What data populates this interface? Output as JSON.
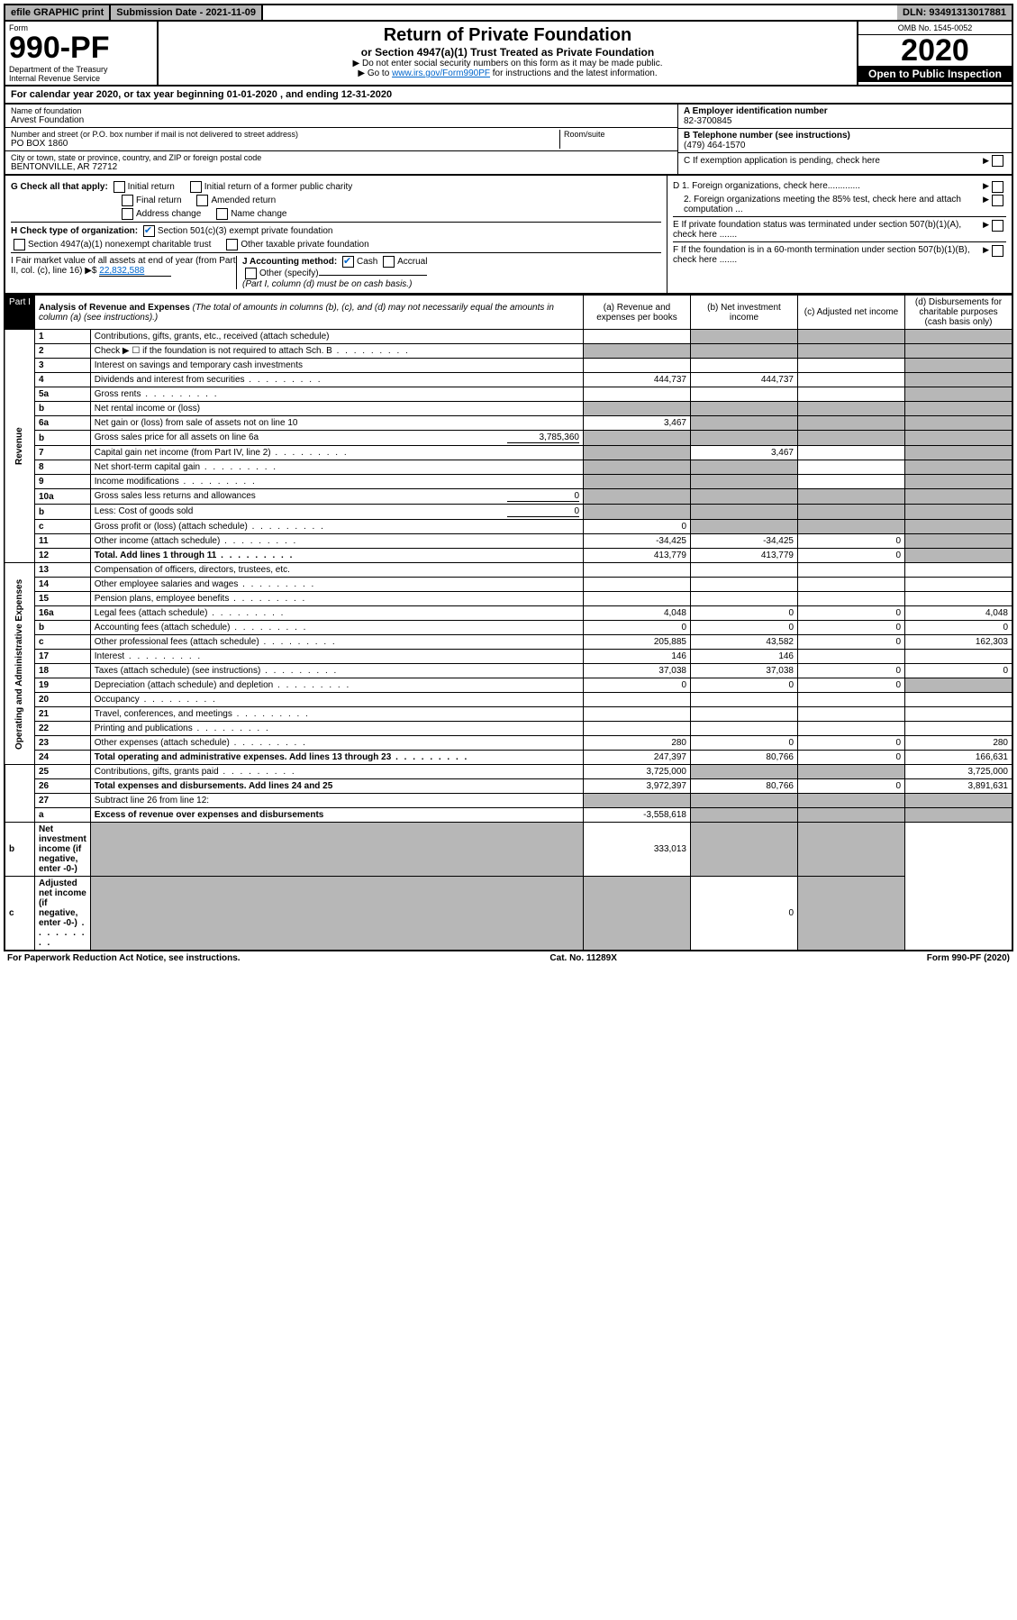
{
  "top": {
    "efile": "efile GRAPHIC print",
    "sub": "Submission Date - 2021-11-09",
    "dln": "DLN: 93491313017881"
  },
  "header": {
    "form_label": "Form",
    "form_no": "990-PF",
    "dept": "Department of the Treasury\nInternal Revenue Service",
    "title": "Return of Private Foundation",
    "subtitle": "or Section 4947(a)(1) Trust Treated as Private Foundation",
    "instr1": "▶ Do not enter social security numbers on this form as it may be made public.",
    "instr2_pre": "▶ Go to ",
    "instr2_link": "www.irs.gov/Form990PF",
    "instr2_post": " for instructions and the latest information.",
    "omb": "OMB No. 1545-0052",
    "year": "2020",
    "open": "Open to Public Inspection"
  },
  "cal": "For calendar year 2020, or tax year beginning 01-01-2020           , and ending 12-31-2020",
  "info": {
    "name_label": "Name of foundation",
    "name": "Arvest Foundation",
    "addr_label": "Number and street (or P.O. box number if mail is not delivered to street address)",
    "addr": "PO BOX 1860",
    "room_label": "Room/suite",
    "city_label": "City or town, state or province, country, and ZIP or foreign postal code",
    "city": "BENTONVILLE, AR  72712",
    "ein_label": "A Employer identification number",
    "ein": "82-3700845",
    "tel_label": "B Telephone number (see instructions)",
    "tel": "(479) 464-1570",
    "c": "C If exemption application is pending, check here",
    "d1": "D 1. Foreign organizations, check here.............",
    "d2": "2. Foreign organizations meeting the 85% test, check here and attach computation ...",
    "e": "E If private foundation status was terminated under section 507(b)(1)(A), check here .......",
    "f": "F If the foundation is in a 60-month termination under section 507(b)(1)(B), check here .......",
    "g": "G Check all that apply:",
    "g_opts": [
      "Initial return",
      "Initial return of a former public charity",
      "Final return",
      "Amended return",
      "Address change",
      "Name change"
    ],
    "h": "H Check type of organization:",
    "h1": "Section 501(c)(3) exempt private foundation",
    "h2": "Section 4947(a)(1) nonexempt charitable trust",
    "h3": "Other taxable private foundation",
    "i": "I Fair market value of all assets at end of year (from Part II, col. (c), line 16) ▶$",
    "i_val": "22,832,588",
    "j": "J Accounting method:",
    "j_cash": "Cash",
    "j_acc": "Accrual",
    "j_other": "Other (specify)",
    "j_note": "(Part I, column (d) must be on cash basis.)"
  },
  "part1": {
    "label": "Part I",
    "title": "Analysis of Revenue and Expenses",
    "note": "(The total of amounts in columns (b), (c), and (d) may not necessarily equal the amounts in column (a) (see instructions).)",
    "cols": {
      "a": "(a) Revenue and expenses per books",
      "b": "(b) Net investment income",
      "c": "(c) Adjusted net income",
      "d": "(d) Disbursements for charitable purposes (cash basis only)"
    }
  },
  "sections": {
    "rev": "Revenue",
    "exp": "Operating and Administrative Expenses"
  },
  "rows": [
    {
      "n": "1",
      "d": "Contributions, gifts, grants, etc., received (attach schedule)",
      "a": "",
      "b": "",
      "c": "",
      "dd": ""
    },
    {
      "n": "2",
      "d": "Check ▶ ☐ if the foundation is not required to attach Sch. B",
      "a": "",
      "b": "",
      "c": "",
      "dd": "",
      "dots": true
    },
    {
      "n": "3",
      "d": "Interest on savings and temporary cash investments",
      "a": "",
      "b": "",
      "c": "",
      "dd": ""
    },
    {
      "n": "4",
      "d": "Dividends and interest from securities",
      "a": "444,737",
      "b": "444,737",
      "c": "",
      "dd": "",
      "dots": true
    },
    {
      "n": "5a",
      "d": "Gross rents",
      "a": "",
      "b": "",
      "c": "",
      "dd": "",
      "dots": true
    },
    {
      "n": "b",
      "d": "Net rental income or (loss)",
      "a": "",
      "b": "",
      "c": "",
      "dd": "",
      "ul": true
    },
    {
      "n": "6a",
      "d": "Net gain or (loss) from sale of assets not on line 10",
      "a": "3,467",
      "b": "",
      "c": "",
      "dd": ""
    },
    {
      "n": "b",
      "d": "Gross sales price for all assets on line 6a",
      "a": "",
      "b": "",
      "c": "",
      "dd": "",
      "inline": "3,785,360"
    },
    {
      "n": "7",
      "d": "Capital gain net income (from Part IV, line 2)",
      "a": "",
      "b": "3,467",
      "c": "",
      "dd": "",
      "dots": true
    },
    {
      "n": "8",
      "d": "Net short-term capital gain",
      "a": "",
      "b": "",
      "c": "",
      "dd": "",
      "dots": true
    },
    {
      "n": "9",
      "d": "Income modifications",
      "a": "",
      "b": "",
      "c": "",
      "dd": "",
      "dots": true
    },
    {
      "n": "10a",
      "d": "Gross sales less returns and allowances",
      "a": "",
      "b": "",
      "c": "",
      "dd": "",
      "inline": "0"
    },
    {
      "n": "b",
      "d": "Less: Cost of goods sold",
      "a": "",
      "b": "",
      "c": "",
      "dd": "",
      "inline": "0"
    },
    {
      "n": "c",
      "d": "Gross profit or (loss) (attach schedule)",
      "a": "0",
      "b": "",
      "c": "",
      "dd": "",
      "dots": true
    },
    {
      "n": "11",
      "d": "Other income (attach schedule)",
      "a": "-34,425",
      "b": "-34,425",
      "c": "0",
      "dd": "",
      "dots": true
    },
    {
      "n": "12",
      "d": "Total. Add lines 1 through 11",
      "a": "413,779",
      "b": "413,779",
      "c": "0",
      "dd": "",
      "bold": true,
      "dots": true
    },
    {
      "n": "13",
      "d": "Compensation of officers, directors, trustees, etc.",
      "a": "",
      "b": "",
      "c": "",
      "dd": ""
    },
    {
      "n": "14",
      "d": "Other employee salaries and wages",
      "a": "",
      "b": "",
      "c": "",
      "dd": "",
      "dots": true
    },
    {
      "n": "15",
      "d": "Pension plans, employee benefits",
      "a": "",
      "b": "",
      "c": "",
      "dd": "",
      "dots": true
    },
    {
      "n": "16a",
      "d": "Legal fees (attach schedule)",
      "a": "4,048",
      "b": "0",
      "c": "0",
      "dd": "4,048",
      "dots": true
    },
    {
      "n": "b",
      "d": "Accounting fees (attach schedule)",
      "a": "0",
      "b": "0",
      "c": "0",
      "dd": "0",
      "dots": true
    },
    {
      "n": "c",
      "d": "Other professional fees (attach schedule)",
      "a": "205,885",
      "b": "43,582",
      "c": "0",
      "dd": "162,303",
      "dots": true
    },
    {
      "n": "17",
      "d": "Interest",
      "a": "146",
      "b": "146",
      "c": "",
      "dd": "",
      "dots": true
    },
    {
      "n": "18",
      "d": "Taxes (attach schedule) (see instructions)",
      "a": "37,038",
      "b": "37,038",
      "c": "0",
      "dd": "0",
      "dots": true
    },
    {
      "n": "19",
      "d": "Depreciation (attach schedule) and depletion",
      "a": "0",
      "b": "0",
      "c": "0",
      "dd": "",
      "dots": true
    },
    {
      "n": "20",
      "d": "Occupancy",
      "a": "",
      "b": "",
      "c": "",
      "dd": "",
      "dots": true
    },
    {
      "n": "21",
      "d": "Travel, conferences, and meetings",
      "a": "",
      "b": "",
      "c": "",
      "dd": "",
      "dots": true
    },
    {
      "n": "22",
      "d": "Printing and publications",
      "a": "",
      "b": "",
      "c": "",
      "dd": "",
      "dots": true
    },
    {
      "n": "23",
      "d": "Other expenses (attach schedule)",
      "a": "280",
      "b": "0",
      "c": "0",
      "dd": "280",
      "dots": true
    },
    {
      "n": "24",
      "d": "Total operating and administrative expenses. Add lines 13 through 23",
      "a": "247,397",
      "b": "80,766",
      "c": "0",
      "dd": "166,631",
      "bold": true,
      "dots": true
    },
    {
      "n": "25",
      "d": "Contributions, gifts, grants paid",
      "a": "3,725,000",
      "b": "",
      "c": "",
      "dd": "3,725,000",
      "dots": true
    },
    {
      "n": "26",
      "d": "Total expenses and disbursements. Add lines 24 and 25",
      "a": "3,972,397",
      "b": "80,766",
      "c": "0",
      "dd": "3,891,631",
      "bold": true
    },
    {
      "n": "27",
      "d": "Subtract line 26 from line 12:",
      "a": "",
      "b": "",
      "c": "",
      "dd": ""
    },
    {
      "n": "a",
      "d": "Excess of revenue over expenses and disbursements",
      "a": "-3,558,618",
      "b": "",
      "c": "",
      "dd": "",
      "bold": true
    },
    {
      "n": "b",
      "d": "Net investment income (if negative, enter -0-)",
      "a": "",
      "b": "333,013",
      "c": "",
      "dd": "",
      "bold": true
    },
    {
      "n": "c",
      "d": "Adjusted net income (if negative, enter -0-)",
      "a": "",
      "b": "",
      "c": "0",
      "dd": "",
      "bold": true,
      "dots": true
    }
  ],
  "footer": {
    "left": "For Paperwork Reduction Act Notice, see instructions.",
    "mid": "Cat. No. 11289X",
    "right": "Form 990-PF (2020)"
  }
}
